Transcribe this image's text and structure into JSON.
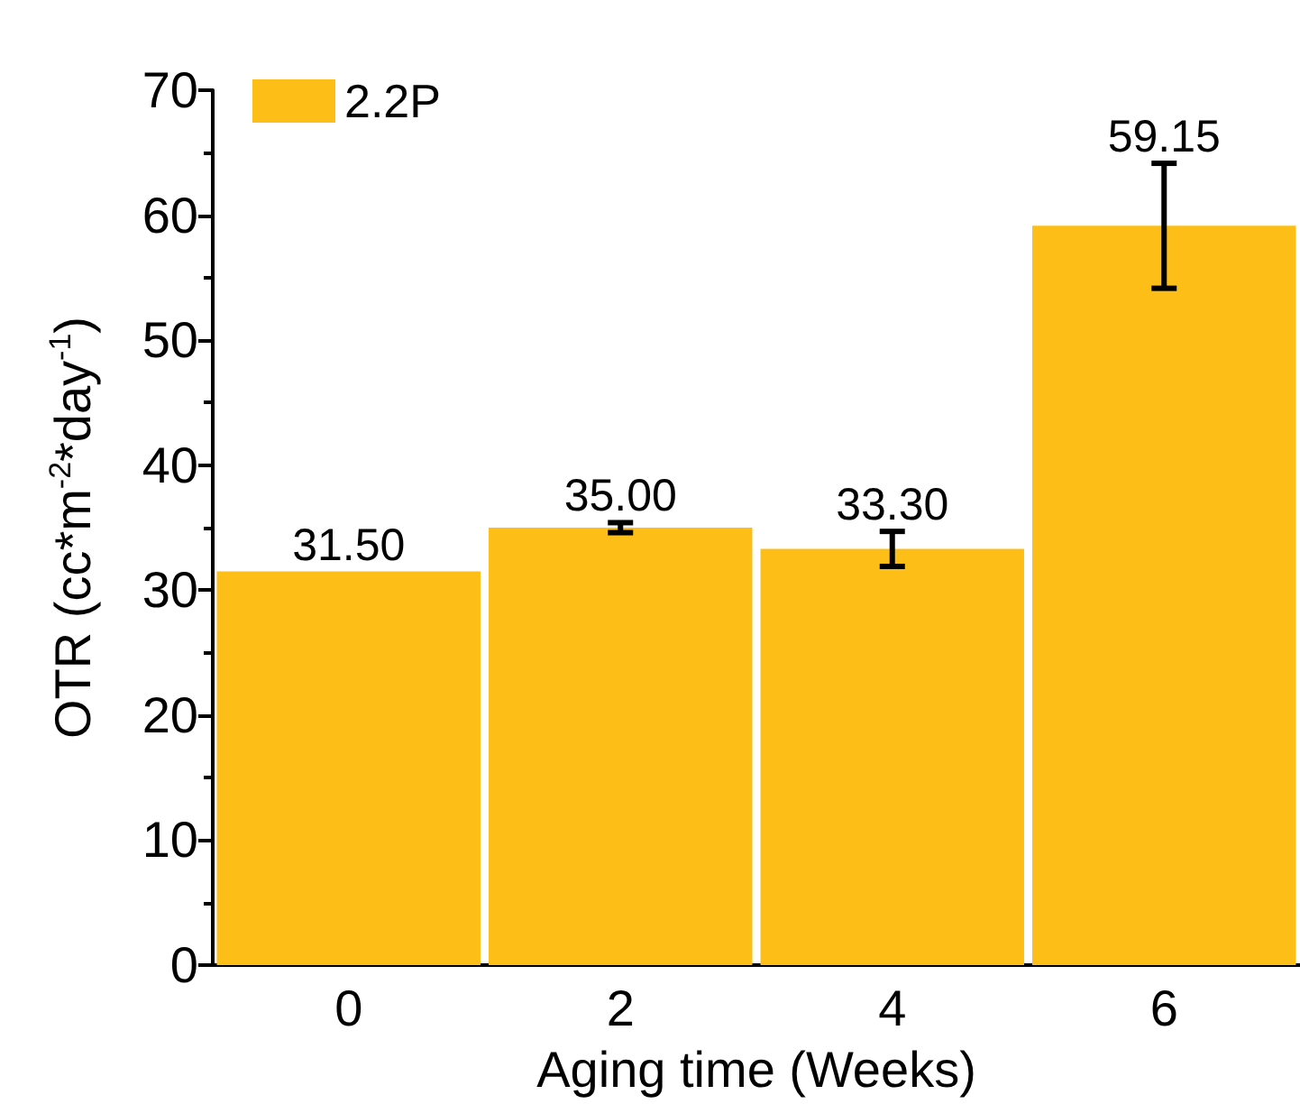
{
  "chart_data": {
    "type": "bar",
    "xlabel": "Aging time (Weeks)",
    "ylabel": "OTR (cc*m$^{-2}$*day$^{-1}$)",
    "categories": [
      "0",
      "2",
      "4",
      "6"
    ],
    "series": [
      {
        "name": "2.2P",
        "color": "#fdbf17",
        "values": [
          31.5,
          35.0,
          33.3,
          59.15
        ],
        "errors": [
          null,
          0.4,
          1.4,
          5.0
        ],
        "value_labels": [
          "31.50",
          "35.00",
          "33.30",
          "59.15"
        ]
      }
    ],
    "ylim": [
      0,
      70
    ],
    "yticks": [
      0,
      10,
      20,
      30,
      40,
      50,
      60,
      70
    ],
    "legend": "top left",
    "grid": false
  }
}
